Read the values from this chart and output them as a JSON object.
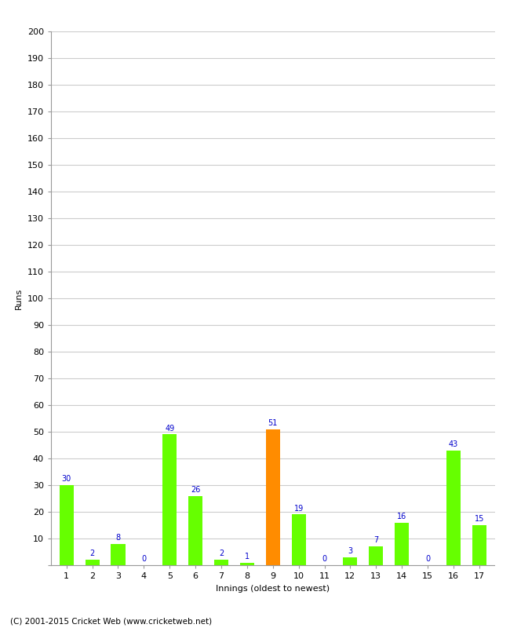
{
  "xlabel": "Innings (oldest to newest)",
  "ylabel": "Runs",
  "categories": [
    "1",
    "2",
    "3",
    "4",
    "5",
    "6",
    "7",
    "8",
    "9",
    "10",
    "11",
    "12",
    "13",
    "14",
    "15",
    "16",
    "17"
  ],
  "values": [
    30,
    2,
    8,
    0,
    49,
    26,
    2,
    1,
    51,
    19,
    0,
    3,
    7,
    16,
    0,
    43,
    15
  ],
  "bar_colors": [
    "#66ff00",
    "#66ff00",
    "#66ff00",
    "#66ff00",
    "#66ff00",
    "#66ff00",
    "#66ff00",
    "#66ff00",
    "#ff8c00",
    "#66ff00",
    "#66ff00",
    "#66ff00",
    "#66ff00",
    "#66ff00",
    "#66ff00",
    "#66ff00",
    "#66ff00"
  ],
  "label_color": "#0000cc",
  "ylim": [
    0,
    200
  ],
  "yticks": [
    0,
    10,
    20,
    30,
    40,
    50,
    60,
    70,
    80,
    90,
    100,
    110,
    120,
    130,
    140,
    150,
    160,
    170,
    180,
    190,
    200
  ],
  "grid_color": "#cccccc",
  "background_color": "#ffffff",
  "footer": "(C) 2001-2015 Cricket Web (www.cricketweb.net)",
  "bar_label_fontsize": 7,
  "axis_label_fontsize": 8,
  "tick_fontsize": 8,
  "footer_fontsize": 7.5,
  "bar_width": 0.55
}
